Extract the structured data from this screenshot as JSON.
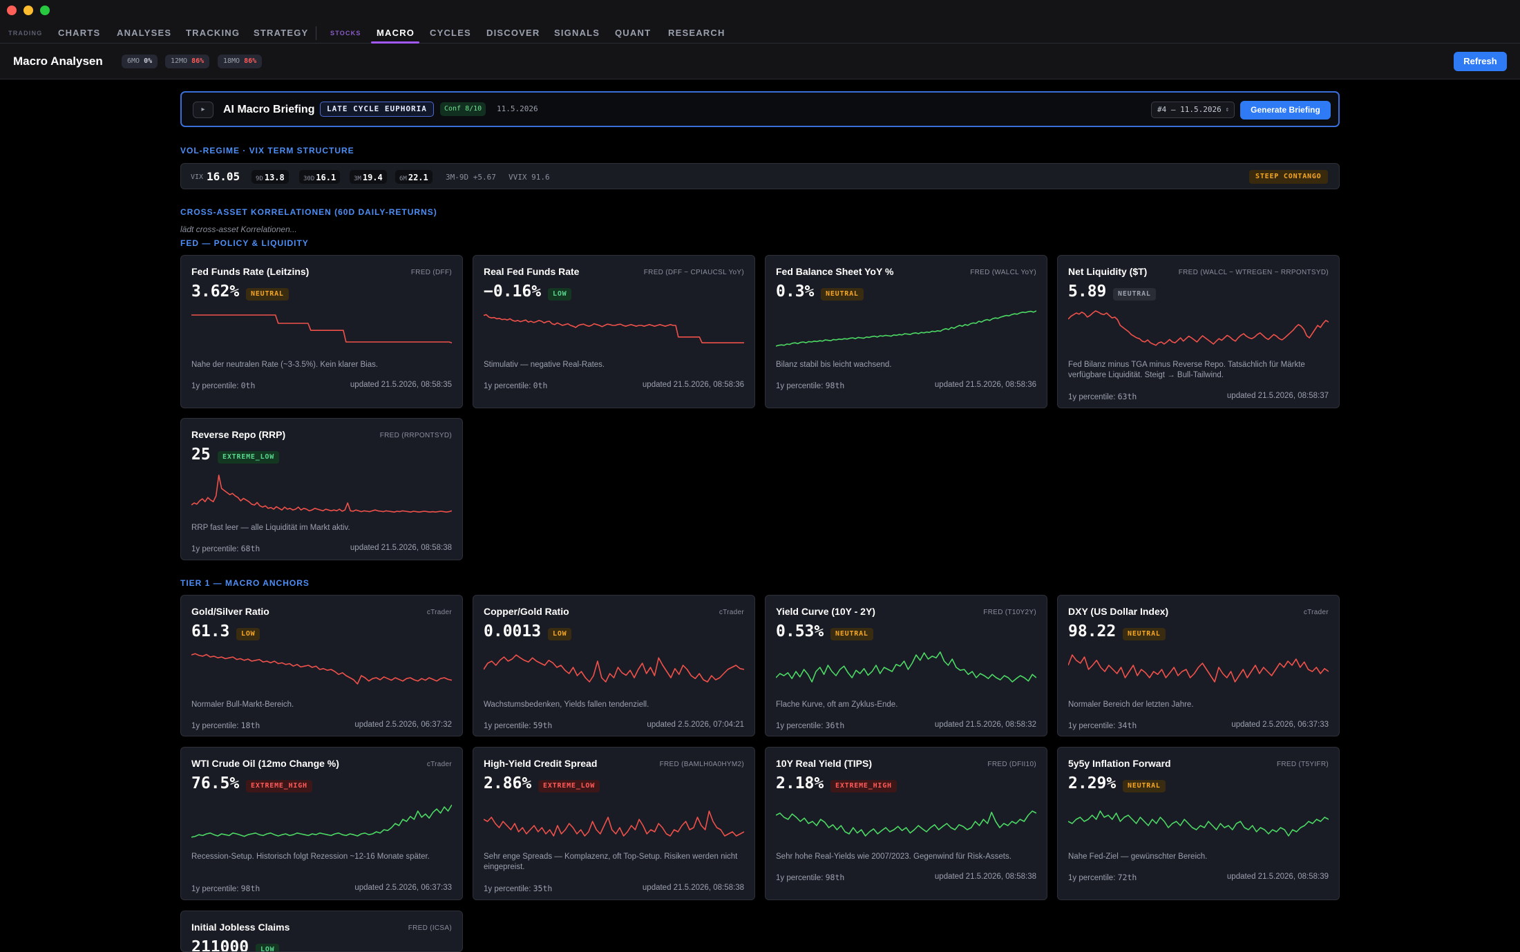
{
  "nav": {
    "cat_trading": "TRADING",
    "charts": "CHARTS",
    "analyses": "ANALYSES",
    "tracking": "TRACKING",
    "strategy": "STRATEGY",
    "cat_stocks": "STOCKS",
    "macro": "MACRO",
    "cycles": "CYCLES",
    "discover": "DISCOVER",
    "signals": "SIGNALS",
    "quant": "QUANT",
    "research": "RESEARCH"
  },
  "header": {
    "title": "Macro Analysen",
    "pills": [
      {
        "label": "6MO",
        "value": "0%"
      },
      {
        "label": "12MO",
        "value": "86%"
      },
      {
        "label": "18MO",
        "value": "86%"
      }
    ],
    "refresh": "Refresh"
  },
  "briefing": {
    "toggle": "▸",
    "title": "AI Macro Briefing",
    "regime": "LATE CYCLE EUPHORIA",
    "confidence": "Conf 8/10",
    "date": "11.5.2026",
    "select_value": "#4 — 11.5.2026",
    "generate": "Generate Briefing"
  },
  "vix": {
    "section": "VOL-REGIME · VIX TERM STRUCTURE",
    "vix_label": "VIX",
    "vix_value": "16.05",
    "terms": [
      {
        "k": "9D",
        "v": "13.8"
      },
      {
        "k": "30D",
        "v": "16.1"
      },
      {
        "k": "3M",
        "v": "19.4"
      },
      {
        "k": "6M",
        "v": "22.1"
      }
    ],
    "spread": "3M-9D +5.67",
    "vvix": "VVIX 91.6",
    "structure": "STEEP CONTANGO"
  },
  "correlations": {
    "section": "CROSS-ASSET KORRELATIONEN (60D DAILY-RETURNS)",
    "loading": "lädt cross-asset Korrelationen..."
  },
  "fed": {
    "section": "FED — POLICY & LIQUIDITY",
    "cards": [
      {
        "title": "Fed Funds Rate (Leitzins)",
        "source": "FRED (DFF)",
        "value": "3.62%",
        "badge": "NEUTRAL",
        "desc": "Nahe der neutralen Rate (~3-3.5%). Kein klarer Bias.",
        "percentile": "1y percentile: ",
        "pct_val": "0th",
        "updated": "updated 21.5.2026, 08:58:35",
        "color": "#f0514a"
      },
      {
        "title": "Real Fed Funds Rate",
        "source": "FRED (DFF − CPIAUCSL YoY)",
        "value": "−0.16%",
        "badge": "LOW",
        "desc": "Stimulativ — negative Real-Rates.",
        "percentile": "1y percentile: ",
        "pct_val": "0th",
        "updated": "updated 21.5.2026, 08:58:36",
        "color": "#f0514a"
      },
      {
        "title": "Fed Balance Sheet YoY %",
        "source": "FRED (WALCL YoY)",
        "value": "0.3%",
        "badge": "NEUTRAL",
        "desc": "Bilanz stabil bis leicht wachsend.",
        "percentile": "1y percentile: ",
        "pct_val": "98th",
        "updated": "updated 21.5.2026, 08:58:36",
        "color": "#4cd964"
      },
      {
        "title": "Net Liquidity ($T)",
        "source": "FRED (WALCL − WTREGEN − RRPONTSYD)",
        "value": "5.89",
        "badge": "NEUTRAL",
        "desc": "Fed Bilanz minus TGA minus Reverse Repo. Tatsächlich für Märkte verfügbare Liquidität. Steigt → Bull-Tailwind.",
        "percentile": "1y percentile: ",
        "pct_val": "63th",
        "updated": "updated 21.5.2026, 08:58:37",
        "color": "#f0514a"
      },
      {
        "title": "Reverse Repo (RRP)",
        "source": "FRED (RRPONTSYD)",
        "value": "25",
        "badge": "EXTREME_LOW",
        "desc": "RRP fast leer — alle Liquidität im Markt aktiv.",
        "percentile": "1y percentile: ",
        "pct_val": "68th",
        "updated": "updated 21.5.2026, 08:58:38",
        "color": "#f0514a"
      }
    ]
  },
  "tier1": {
    "section": "TIER 1 — MACRO ANCHORS",
    "cards": [
      {
        "title": "Gold/Silver Ratio",
        "source": "cTrader",
        "value": "61.3",
        "badge": "LOW",
        "desc": "Normaler Bull-Markt-Bereich.",
        "percentile": "1y percentile: ",
        "pct_val": "18th",
        "updated": "updated 2.5.2026, 06:37:32",
        "color": "#f0514a"
      },
      {
        "title": "Copper/Gold Ratio",
        "source": "cTrader",
        "value": "0.0013",
        "badge": "LOW",
        "desc": "Wachstumsbedenken, Yields fallen tendenziell.",
        "percentile": "1y percentile: ",
        "pct_val": "59th",
        "updated": "updated 2.5.2026, 07:04:21",
        "color": "#f0514a"
      },
      {
        "title": "Yield Curve (10Y - 2Y)",
        "source": "FRED (T10Y2Y)",
        "value": "0.53%",
        "badge": "NEUTRAL",
        "desc": "Flache Kurve, oft am Zyklus-Ende.",
        "percentile": "1y percentile: ",
        "pct_val": "36th",
        "updated": "updated 21.5.2026, 08:58:32",
        "color": "#4cd964"
      },
      {
        "title": "DXY (US Dollar Index)",
        "source": "cTrader",
        "value": "98.22",
        "badge": "NEUTRAL",
        "desc": "Normaler Bereich der letzten Jahre.",
        "percentile": "1y percentile: ",
        "pct_val": "34th",
        "updated": "updated 2.5.2026, 06:37:33",
        "color": "#f0514a"
      },
      {
        "title": "WTI Crude Oil (12mo Change %)",
        "source": "cTrader",
        "value": "76.5%",
        "badge": "EXTREME_HIGH",
        "desc": "Recession-Setup. Historisch folgt Rezession ~12-16 Monate später.",
        "percentile": "1y percentile: ",
        "pct_val": "98th",
        "updated": "updated 2.5.2026, 06:37:33",
        "color": "#4cd964"
      },
      {
        "title": "High-Yield Credit Spread",
        "source": "FRED (BAMLH0A0HYM2)",
        "value": "2.86%",
        "badge": "EXTREME_LOW",
        "desc": "Sehr enge Spreads — Komplazenz, oft Top-Setup. Risiken werden nicht eingepreist.",
        "percentile": "1y percentile: ",
        "pct_val": "35th",
        "updated": "updated 21.5.2026, 08:58:38",
        "color": "#f0514a"
      },
      {
        "title": "10Y Real Yield (TIPS)",
        "source": "FRED (DFII10)",
        "value": "2.18%",
        "badge": "EXTREME_HIGH",
        "desc": "Sehr hohe Real-Yields wie 2007/2023. Gegenwind für Risk-Assets.",
        "percentile": "1y percentile: ",
        "pct_val": "98th",
        "updated": "updated 21.5.2026, 08:58:38",
        "color": "#4cd964"
      },
      {
        "title": "5y5y Inflation Forward",
        "source": "FRED (T5YIFR)",
        "value": "2.29%",
        "badge": "NEUTRAL",
        "desc": "Nahe Fed-Ziel — gewünschter Bereich.",
        "percentile": "1y percentile: ",
        "pct_val": "72th",
        "updated": "updated 21.5.2026, 08:58:39",
        "color": "#4cd964"
      },
      {
        "title": "Initial Jobless Claims",
        "source": "FRED (ICSA)",
        "value": "211000",
        "badge": "LOW"
      }
    ]
  },
  "sparks": {
    "fed0": [
      0.85,
      0.85,
      0.85,
      0.85,
      0.85,
      0.85,
      0.85,
      0.85,
      0.85,
      0.85,
      0.85,
      0.85,
      0.85,
      0.85,
      0.85,
      0.85,
      0.85,
      0.85,
      0.85,
      0.85,
      0.85,
      0.85,
      0.85,
      0.85,
      0.85,
      0.85,
      0.85,
      0.85,
      0.85,
      0.85,
      0.85,
      0.85,
      0.65,
      0.65,
      0.65,
      0.65,
      0.65,
      0.65,
      0.65,
      0.65,
      0.65,
      0.65,
      0.65,
      0.65,
      0.48,
      0.48,
      0.48,
      0.48,
      0.48,
      0.48,
      0.48,
      0.48,
      0.48,
      0.48,
      0.48,
      0.48,
      0.48,
      0.2,
      0.2,
      0.2,
      0.2,
      0.2,
      0.2,
      0.2,
      0.2,
      0.2,
      0.2,
      0.2,
      0.2,
      0.2,
      0.2,
      0.2,
      0.2,
      0.2,
      0.2,
      0.2,
      0.2,
      0.2,
      0.2,
      0.2,
      0.2,
      0.2,
      0.2,
      0.2,
      0.2,
      0.2,
      0.2,
      0.2,
      0.2,
      0.2,
      0.2,
      0.2,
      0.2,
      0.2,
      0.2,
      0.2,
      0.18
    ],
    "fed1": [
      0.84,
      0.86,
      0.8,
      0.78,
      0.79,
      0.76,
      0.77,
      0.74,
      0.75,
      0.73,
      0.76,
      0.72,
      0.7,
      0.72,
      0.69,
      0.71,
      0.73,
      0.68,
      0.7,
      0.67,
      0.69,
      0.72,
      0.7,
      0.66,
      0.69,
      0.7,
      0.64,
      0.62,
      0.66,
      0.63,
      0.6,
      0.62,
      0.64,
      0.6,
      0.58,
      0.55,
      0.6,
      0.62,
      0.63,
      0.6,
      0.58,
      0.6,
      0.64,
      0.62,
      0.6,
      0.57,
      0.6,
      0.63,
      0.62,
      0.6,
      0.6,
      0.62,
      0.63,
      0.6,
      0.58,
      0.6,
      0.62,
      0.6,
      0.58,
      0.6,
      0.6,
      0.58,
      0.6,
      0.62,
      0.6,
      0.58,
      0.6,
      0.62,
      0.6,
      0.58,
      0.6,
      0.62,
      0.6,
      0.6,
      0.32,
      0.32,
      0.32,
      0.32,
      0.32,
      0.32,
      0.32,
      0.32,
      0.32,
      0.18,
      0.18,
      0.18,
      0.18,
      0.18,
      0.18,
      0.18,
      0.18,
      0.18,
      0.18,
      0.18,
      0.18,
      0.18,
      0.18,
      0.18,
      0.18,
      0.18
    ],
    "fed2": [
      0.1,
      0.12,
      0.13,
      0.12,
      0.15,
      0.14,
      0.17,
      0.18,
      0.16,
      0.19,
      0.2,
      0.18,
      0.21,
      0.2,
      0.22,
      0.21,
      0.23,
      0.22,
      0.25,
      0.24,
      0.23,
      0.26,
      0.25,
      0.27,
      0.26,
      0.28,
      0.27,
      0.29,
      0.3,
      0.28,
      0.31,
      0.3,
      0.29,
      0.32,
      0.31,
      0.33,
      0.34,
      0.32,
      0.35,
      0.34,
      0.36,
      0.35,
      0.34,
      0.37,
      0.36,
      0.38,
      0.37,
      0.4,
      0.39,
      0.38,
      0.41,
      0.42,
      0.4,
      0.43,
      0.42,
      0.44,
      0.43,
      0.46,
      0.45,
      0.47,
      0.46,
      0.5,
      0.52,
      0.5,
      0.55,
      0.53,
      0.57,
      0.6,
      0.58,
      0.62,
      0.6,
      0.64,
      0.66,
      0.65,
      0.7,
      0.68,
      0.72,
      0.74,
      0.72,
      0.76,
      0.78,
      0.77,
      0.8,
      0.82,
      0.84,
      0.83,
      0.86,
      0.88,
      0.87,
      0.9,
      0.92,
      0.91,
      0.93,
      0.94,
      0.92,
      0.95
    ],
    "fed3": [
      0.75,
      0.82,
      0.86,
      0.9,
      0.87,
      0.92,
      0.88,
      0.8,
      0.84,
      0.9,
      0.95,
      0.92,
      0.88,
      0.86,
      0.9,
      0.84,
      0.78,
      0.8,
      0.74,
      0.6,
      0.55,
      0.5,
      0.45,
      0.38,
      0.34,
      0.3,
      0.28,
      0.22,
      0.2,
      0.25,
      0.18,
      0.15,
      0.12,
      0.18,
      0.2,
      0.15,
      0.2,
      0.26,
      0.2,
      0.18,
      0.24,
      0.3,
      0.22,
      0.28,
      0.34,
      0.3,
      0.25,
      0.2,
      0.28,
      0.35,
      0.3,
      0.25,
      0.2,
      0.15,
      0.22,
      0.28,
      0.24,
      0.3,
      0.36,
      0.32,
      0.26,
      0.22,
      0.3,
      0.36,
      0.4,
      0.34,
      0.3,
      0.28,
      0.32,
      0.38,
      0.42,
      0.36,
      0.3,
      0.26,
      0.32,
      0.38,
      0.34,
      0.28,
      0.25,
      0.3,
      0.36,
      0.42,
      0.48,
      0.56,
      0.62,
      0.58,
      0.5,
      0.35,
      0.3,
      0.4,
      0.5,
      0.6,
      0.55,
      0.65,
      0.72,
      0.68
    ],
    "fed4": [
      0.2,
      0.25,
      0.22,
      0.3,
      0.35,
      0.28,
      0.38,
      0.32,
      0.28,
      0.42,
      0.92,
      0.6,
      0.55,
      0.5,
      0.45,
      0.48,
      0.42,
      0.38,
      0.3,
      0.36,
      0.32,
      0.28,
      0.22,
      0.2,
      0.26,
      0.18,
      0.15,
      0.18,
      0.12,
      0.14,
      0.1,
      0.16,
      0.12,
      0.08,
      0.15,
      0.1,
      0.12,
      0.08,
      0.1,
      0.15,
      0.08,
      0.12,
      0.1,
      0.06,
      0.08,
      0.12,
      0.1,
      0.08,
      0.06,
      0.1,
      0.08,
      0.06,
      0.08,
      0.06,
      0.1,
      0.05,
      0.08,
      0.25,
      0.06,
      0.05,
      0.08,
      0.06,
      0.04,
      0.06,
      0.05,
      0.04,
      0.06,
      0.08,
      0.06,
      0.05,
      0.04,
      0.06,
      0.05,
      0.04,
      0.03,
      0.05,
      0.04,
      0.06,
      0.05,
      0.04,
      0.03,
      0.05,
      0.04,
      0.03,
      0.04,
      0.05,
      0.04,
      0.03,
      0.04,
      0.03,
      0.04,
      0.05,
      0.04,
      0.03,
      0.04,
      0.06
    ],
    "t0": [
      0.85,
      0.88,
      0.84,
      0.82,
      0.86,
      0.8,
      0.82,
      0.78,
      0.8,
      0.76,
      0.78,
      0.8,
      0.74,
      0.76,
      0.72,
      0.75,
      0.7,
      0.72,
      0.74,
      0.68,
      0.7,
      0.66,
      0.7,
      0.64,
      0.66,
      0.62,
      0.64,
      0.58,
      0.62,
      0.56,
      0.58,
      0.6,
      0.55,
      0.58,
      0.5,
      0.52,
      0.48,
      0.5,
      0.45,
      0.38,
      0.42,
      0.35,
      0.3,
      0.25,
      0.15,
      0.35,
      0.3,
      0.22,
      0.28,
      0.3,
      0.25,
      0.32,
      0.28,
      0.24,
      0.3,
      0.26,
      0.22,
      0.28,
      0.3,
      0.25,
      0.22,
      0.28,
      0.24,
      0.3,
      0.26,
      0.22,
      0.28,
      0.3,
      0.26,
      0.24
    ],
    "t1": [
      0.5,
      0.65,
      0.7,
      0.6,
      0.72,
      0.8,
      0.7,
      0.75,
      0.85,
      0.78,
      0.72,
      0.68,
      0.78,
      0.7,
      0.65,
      0.6,
      0.72,
      0.66,
      0.55,
      0.6,
      0.48,
      0.4,
      0.55,
      0.35,
      0.45,
      0.3,
      0.2,
      0.35,
      0.7,
      0.3,
      0.2,
      0.4,
      0.3,
      0.55,
      0.42,
      0.36,
      0.48,
      0.3,
      0.5,
      0.65,
      0.4,
      0.55,
      0.35,
      0.78,
      0.6,
      0.45,
      0.3,
      0.52,
      0.38,
      0.6,
      0.5,
      0.35,
      0.28,
      0.4,
      0.25,
      0.2,
      0.35,
      0.25,
      0.3,
      0.4,
      0.5,
      0.55,
      0.6,
      0.52,
      0.5
    ],
    "t2": [
      0.3,
      0.4,
      0.35,
      0.42,
      0.28,
      0.45,
      0.32,
      0.5,
      0.38,
      0.2,
      0.45,
      0.55,
      0.38,
      0.6,
      0.45,
      0.35,
      0.5,
      0.58,
      0.42,
      0.3,
      0.48,
      0.4,
      0.52,
      0.36,
      0.45,
      0.6,
      0.4,
      0.55,
      0.5,
      0.45,
      0.62,
      0.58,
      0.7,
      0.5,
      0.65,
      0.85,
      0.72,
      0.9,
      0.75,
      0.82,
      0.78,
      0.92,
      0.7,
      0.6,
      0.75,
      0.55,
      0.48,
      0.5,
      0.38,
      0.45,
      0.3,
      0.4,
      0.35,
      0.28,
      0.38,
      0.3,
      0.25,
      0.35,
      0.3,
      0.2,
      0.28,
      0.35,
      0.3,
      0.22,
      0.38,
      0.3
    ],
    "t3": [
      0.6,
      0.85,
      0.72,
      0.65,
      0.8,
      0.5,
      0.6,
      0.72,
      0.55,
      0.45,
      0.6,
      0.5,
      0.4,
      0.55,
      0.3,
      0.45,
      0.6,
      0.35,
      0.5,
      0.42,
      0.3,
      0.45,
      0.38,
      0.5,
      0.3,
      0.42,
      0.55,
      0.35,
      0.45,
      0.5,
      0.3,
      0.4,
      0.55,
      0.65,
      0.5,
      0.35,
      0.2,
      0.55,
      0.4,
      0.3,
      0.45,
      0.2,
      0.35,
      0.5,
      0.3,
      0.45,
      0.6,
      0.4,
      0.55,
      0.45,
      0.35,
      0.5,
      0.65,
      0.55,
      0.7,
      0.6,
      0.75,
      0.55,
      0.68,
      0.5,
      0.45,
      0.55,
      0.4,
      0.52,
      0.45
    ],
    "t4": [
      0.12,
      0.14,
      0.18,
      0.16,
      0.2,
      0.22,
      0.18,
      0.15,
      0.2,
      0.18,
      0.16,
      0.22,
      0.2,
      0.17,
      0.14,
      0.18,
      0.2,
      0.22,
      0.18,
      0.16,
      0.2,
      0.22,
      0.18,
      0.15,
      0.18,
      0.2,
      0.16,
      0.18,
      0.22,
      0.2,
      0.18,
      0.16,
      0.2,
      0.18,
      0.22,
      0.2,
      0.18,
      0.16,
      0.2,
      0.22,
      0.18,
      0.16,
      0.2,
      0.18,
      0.15,
      0.2,
      0.22,
      0.18,
      0.2,
      0.25,
      0.22,
      0.3,
      0.28,
      0.35,
      0.45,
      0.4,
      0.55,
      0.5,
      0.62,
      0.55,
      0.75,
      0.6,
      0.68,
      0.58,
      0.72,
      0.8,
      0.7,
      0.85,
      0.75,
      0.9
    ],
    "t5": [
      0.55,
      0.5,
      0.6,
      0.45,
      0.35,
      0.5,
      0.4,
      0.3,
      0.45,
      0.25,
      0.35,
      0.2,
      0.3,
      0.4,
      0.25,
      0.35,
      0.2,
      0.3,
      0.15,
      0.4,
      0.2,
      0.3,
      0.45,
      0.35,
      0.2,
      0.3,
      0.15,
      0.25,
      0.5,
      0.3,
      0.2,
      0.4,
      0.6,
      0.3,
      0.2,
      0.35,
      0.15,
      0.25,
      0.4,
      0.3,
      0.55,
      0.4,
      0.2,
      0.3,
      0.25,
      0.45,
      0.35,
      0.2,
      0.15,
      0.3,
      0.25,
      0.4,
      0.5,
      0.3,
      0.35,
      0.6,
      0.4,
      0.3,
      0.75,
      0.5,
      0.35,
      0.3,
      0.15,
      0.2,
      0.25,
      0.15,
      0.2,
      0.25
    ],
    "t6": [
      0.65,
      0.7,
      0.6,
      0.55,
      0.68,
      0.6,
      0.5,
      0.58,
      0.45,
      0.5,
      0.4,
      0.55,
      0.48,
      0.35,
      0.42,
      0.3,
      0.4,
      0.25,
      0.2,
      0.35,
      0.22,
      0.3,
      0.15,
      0.25,
      0.32,
      0.2,
      0.28,
      0.35,
      0.25,
      0.3,
      0.38,
      0.28,
      0.35,
      0.22,
      0.3,
      0.4,
      0.32,
      0.25,
      0.35,
      0.42,
      0.3,
      0.38,
      0.45,
      0.35,
      0.3,
      0.42,
      0.38,
      0.3,
      0.35,
      0.5,
      0.4,
      0.55,
      0.45,
      0.72,
      0.5,
      0.35,
      0.45,
      0.4,
      0.5,
      0.45,
      0.55,
      0.5,
      0.65,
      0.75,
      0.7
    ],
    "t7": [
      0.5,
      0.45,
      0.55,
      0.6,
      0.5,
      0.55,
      0.65,
      0.55,
      0.75,
      0.6,
      0.65,
      0.55,
      0.7,
      0.5,
      0.6,
      0.65,
      0.55,
      0.45,
      0.6,
      0.5,
      0.4,
      0.55,
      0.45,
      0.6,
      0.5,
      0.35,
      0.45,
      0.5,
      0.4,
      0.55,
      0.45,
      0.35,
      0.3,
      0.4,
      0.35,
      0.5,
      0.4,
      0.3,
      0.45,
      0.35,
      0.4,
      0.3,
      0.45,
      0.5,
      0.35,
      0.3,
      0.4,
      0.25,
      0.35,
      0.3,
      0.2,
      0.3,
      0.25,
      0.35,
      0.3,
      0.15,
      0.3,
      0.25,
      0.35,
      0.4,
      0.5,
      0.45,
      0.55,
      0.5,
      0.6,
      0.55
    ]
  }
}
